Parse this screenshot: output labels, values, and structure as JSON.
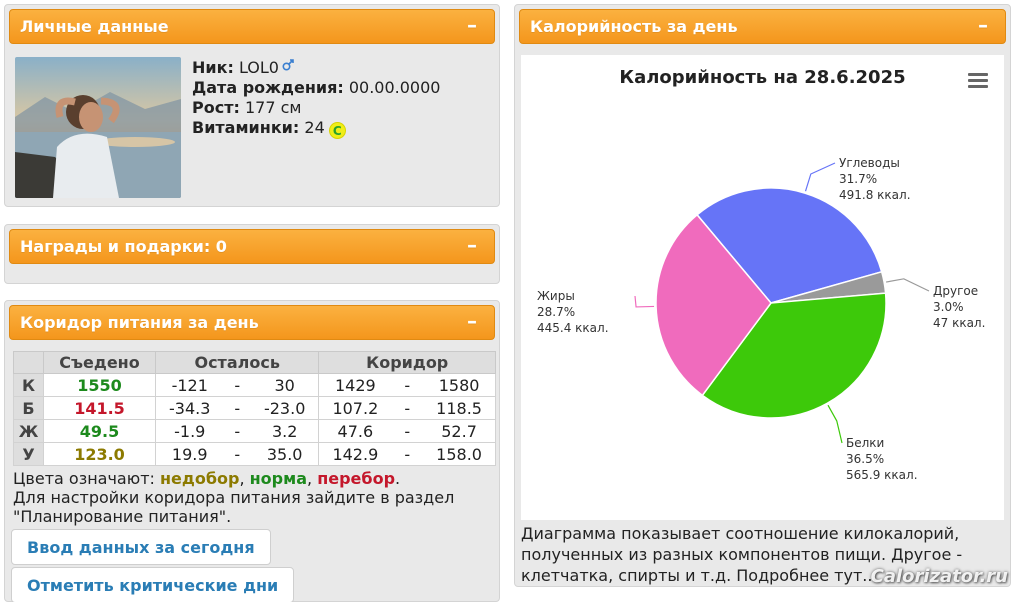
{
  "personal": {
    "header": "Личные данные",
    "collapse": "–",
    "nick_label": "Ник:",
    "nick_value": "LOL0",
    "birth_label": "Дата рождения:",
    "birth_value": "00.00.0000",
    "height_label": "Рост:",
    "height_value": "177 см",
    "vit_label": "Витаминки:",
    "vit_value": "24",
    "vit_icon_letter": "C"
  },
  "awards": {
    "header": "Награды и подарки: 0",
    "collapse": "–"
  },
  "corridor": {
    "header": "Коридор питания за день",
    "collapse": "–",
    "columns": [
      "Съедено",
      "Осталось",
      "Коридор"
    ],
    "rows": [
      {
        "label": "К",
        "eaten": "1550",
        "eaten_color": "#1d8a1d",
        "rem_from": "-121",
        "rem_to": "30",
        "cor_from": "1429",
        "cor_to": "1580"
      },
      {
        "label": "Б",
        "eaten": "141.5",
        "eaten_color": "#c4172b",
        "rem_from": "-34.3",
        "rem_to": "-23.0",
        "cor_from": "107.2",
        "cor_to": "118.5"
      },
      {
        "label": "Ж",
        "eaten": "49.5",
        "eaten_color": "#1d8a1d",
        "rem_from": "-1.9",
        "rem_to": "3.2",
        "cor_from": "47.6",
        "cor_to": "52.7"
      },
      {
        "label": "У",
        "eaten": "123.0",
        "eaten_color": "#8c7a00",
        "rem_from": "19.9",
        "rem_to": "35.0",
        "cor_from": "142.9",
        "cor_to": "158.0"
      }
    ],
    "dash": "-",
    "legend_prefix": "Цвета означают:",
    "legend_under": "недобор",
    "legend_norm": "норма",
    "legend_over": "перебор",
    "comma": ",",
    "period": ".",
    "settings_text": "Для настройки коридора питания зайдите в раздел \"Планирование питания\".",
    "btn_today": "Ввод данных за сегодня",
    "btn_critical": "Отметить критические дни"
  },
  "calories": {
    "header": "Калорийность за день",
    "collapse": "–",
    "description": "Диаграмма показывает соотношение килокалорий, полученных из разных компонентов пищи. Другое - клетчатка, спирты и т.д. Подробнее тут..."
  },
  "chart_data": {
    "type": "pie",
    "title": "Калорийность на 28.6.2025",
    "slices": [
      {
        "name": "Углеводы",
        "percent": 31.7,
        "percent_label": "31.7%",
        "value_label": "491.8 ккал.",
        "color": "#6674f7"
      },
      {
        "name": "Другое",
        "percent": 3.0,
        "percent_label": "3.0%",
        "value_label": "47 ккал.",
        "color": "#9a9a9a"
      },
      {
        "name": "Белки",
        "percent": 36.5,
        "percent_label": "36.5%",
        "value_label": "565.9 ккал.",
        "color": "#3dc90a"
      },
      {
        "name": "Жиры",
        "percent": 28.7,
        "percent_label": "28.7%",
        "value_label": "445.4 ккал.",
        "color": "#f06bbd"
      }
    ]
  },
  "watermark": "Calorizator.ru"
}
